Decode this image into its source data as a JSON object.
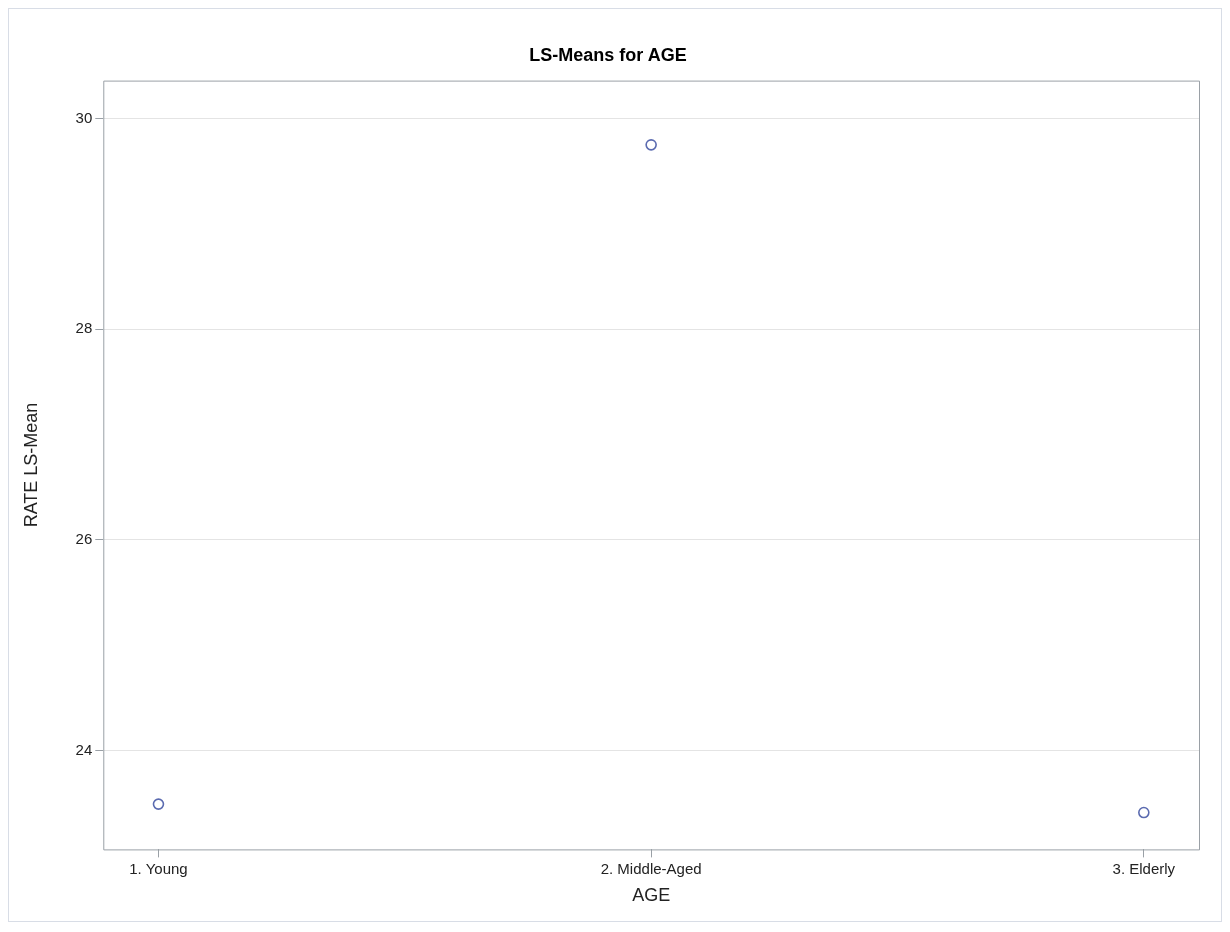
{
  "chart_data": {
    "type": "scatter",
    "title": "LS-Means for AGE",
    "xlabel": "AGE",
    "ylabel": "RATE LS-Mean",
    "categories": [
      "1. Young",
      "2. Middle-Aged",
      "3. Elderly"
    ],
    "series": [
      {
        "color": "#5b6bb0",
        "values": [
          23.49,
          29.75,
          23.41
        ]
      }
    ],
    "ylim": [
      23.06,
      30.36
    ],
    "yticks": [
      24,
      26,
      28,
      30
    ],
    "grid": "y",
    "legend": false,
    "marker": "circle"
  }
}
